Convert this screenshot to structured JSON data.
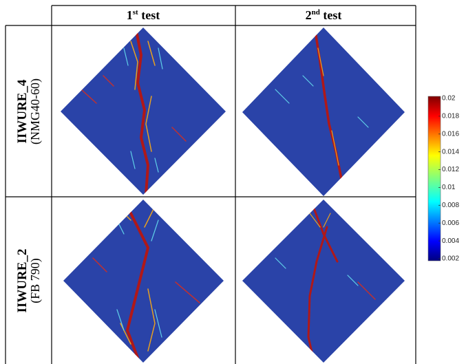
{
  "table": {
    "columns": [
      {
        "base": "1",
        "sup": "st",
        "rest": " test"
      },
      {
        "base": "2",
        "sup": "nd",
        "rest": " test"
      }
    ],
    "rows": [
      {
        "name": "IIWURE_4",
        "material": "(NMG40-60)"
      },
      {
        "name": "IIWURE_2",
        "material": "(FB 790)"
      }
    ]
  },
  "colorbar": {
    "range": [
      0.002,
      0.02
    ],
    "ticks": [
      0.02,
      0.018,
      0.016,
      0.014,
      0.012,
      0.01,
      0.008,
      0.006,
      0.004,
      0.002
    ]
  }
}
